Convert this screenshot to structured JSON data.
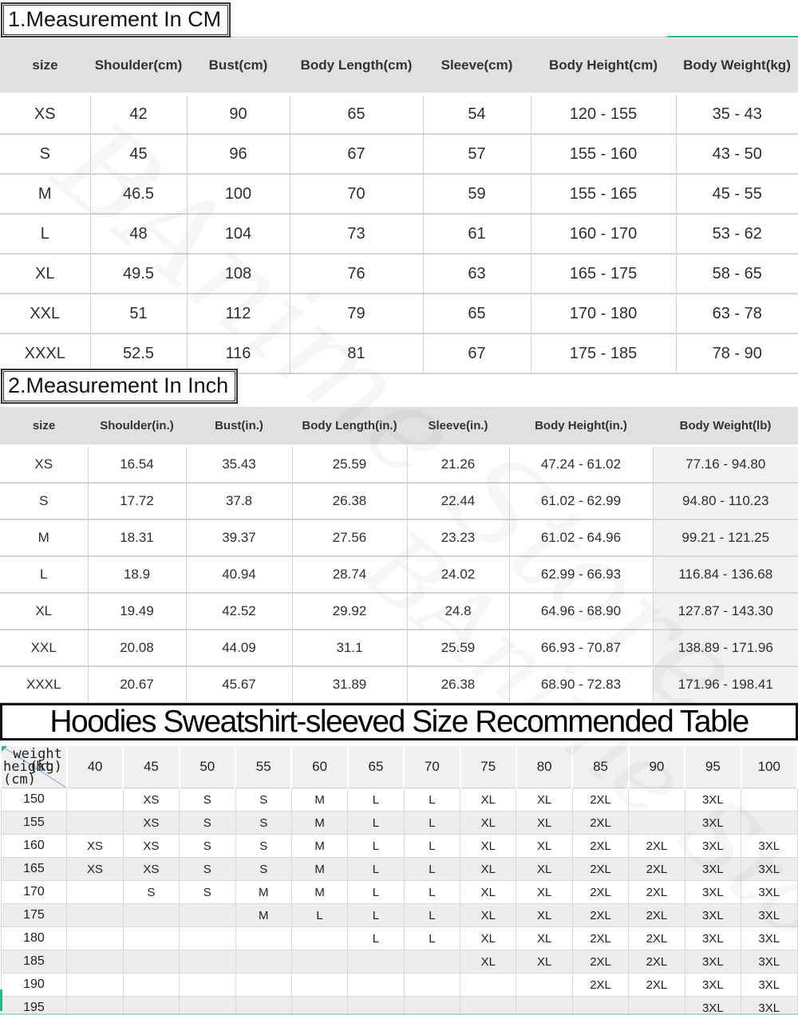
{
  "watermark": "BAnime Store",
  "colors": {
    "teal_accent": "#2bb68b",
    "light_green_accent": "#abdcc9",
    "header_bg": "#e0e0e0",
    "matrix_header_bg": "#f0f0f0",
    "alt_row_bg": "#ececec",
    "grid_border": "#d6d6d6",
    "diagonal_line": "#99badb"
  },
  "chart_data": [
    {
      "type": "table",
      "title": "1.Measurement In CM",
      "columns": [
        "size",
        "Shoulder(cm)",
        "Bust(cm)",
        "Body Length(cm)",
        "Sleeve(cm)",
        "Body Height(cm)",
        "Body Weight(kg)"
      ],
      "rows": [
        [
          "XS",
          "42",
          "90",
          "65",
          "54",
          "120 - 155",
          "35 - 43"
        ],
        [
          "S",
          "45",
          "96",
          "67",
          "57",
          "155 - 160",
          "43 - 50"
        ],
        [
          "M",
          "46.5",
          "100",
          "70",
          "59",
          "155 - 165",
          "45 - 55"
        ],
        [
          "L",
          "48",
          "104",
          "73",
          "61",
          "160 - 170",
          "53 - 62"
        ],
        [
          "XL",
          "49.5",
          "108",
          "76",
          "63",
          "165 - 175",
          "58 - 65"
        ],
        [
          "XXL",
          "51",
          "112",
          "79",
          "65",
          "170 - 180",
          "63 - 78"
        ],
        [
          "XXXL",
          "52.5",
          "116",
          "81",
          "67",
          "175 - 185",
          "78 - 90"
        ]
      ]
    },
    {
      "type": "table",
      "title": "2.Measurement In Inch",
      "columns": [
        "size",
        "Shoulder(in.)",
        "Bust(in.)",
        "Body Length(in.)",
        "Sleeve(in.)",
        "Body Height(in.)",
        "Body Weight(lb)"
      ],
      "rows": [
        [
          "XS",
          "16.54",
          "35.43",
          "25.59",
          "21.26",
          "47.24 - 61.02",
          "77.16 - 94.80"
        ],
        [
          "S",
          "17.72",
          "37.8",
          "26.38",
          "22.44",
          "61.02 - 62.99",
          "94.80 - 110.23"
        ],
        [
          "M",
          "18.31",
          "39.37",
          "27.56",
          "23.23",
          "61.02 - 64.96",
          "99.21 - 121.25"
        ],
        [
          "L",
          "18.9",
          "40.94",
          "28.74",
          "24.02",
          "62.99 - 66.93",
          "116.84 - 136.68"
        ],
        [
          "XL",
          "19.49",
          "42.52",
          "29.92",
          "24.8",
          "64.96 - 68.90",
          "127.87 - 143.30"
        ],
        [
          "XXL",
          "20.08",
          "44.09",
          "31.1",
          "25.59",
          "66.93 - 70.87",
          "138.89 - 171.96"
        ],
        [
          "XXXL",
          "20.67",
          "45.67",
          "31.89",
          "26.38",
          "68.90 - 72.83",
          "171.96 - 198.41"
        ]
      ]
    },
    {
      "type": "table",
      "title": "Hoodies Sweatshirt-sleeved Size Recommended Table",
      "corner": {
        "weight_label": "weight",
        "weight_unit": "(kg)",
        "height_label": "height",
        "height_unit": "(cm)"
      },
      "weight_columns_kg": [
        "40",
        "45",
        "50",
        "55",
        "60",
        "65",
        "70",
        "75",
        "80",
        "85",
        "90",
        "95",
        "100"
      ],
      "rows": [
        {
          "height": "150",
          "sizes": [
            "",
            "XS",
            "S",
            "S",
            "M",
            "L",
            "L",
            "XL",
            "XL",
            "2XL",
            "",
            "3XL",
            ""
          ]
        },
        {
          "height": "155",
          "sizes": [
            "",
            "XS",
            "S",
            "S",
            "M",
            "L",
            "L",
            "XL",
            "XL",
            "2XL",
            "",
            "3XL",
            ""
          ]
        },
        {
          "height": "160",
          "sizes": [
            "XS",
            "XS",
            "S",
            "S",
            "M",
            "L",
            "L",
            "XL",
            "XL",
            "2XL",
            "2XL",
            "3XL",
            "3XL"
          ]
        },
        {
          "height": "165",
          "sizes": [
            "XS",
            "XS",
            "S",
            "S",
            "M",
            "L",
            "L",
            "XL",
            "XL",
            "2XL",
            "2XL",
            "3XL",
            "3XL"
          ]
        },
        {
          "height": "170",
          "sizes": [
            "",
            "S",
            "S",
            "M",
            "M",
            "L",
            "L",
            "XL",
            "XL",
            "2XL",
            "2XL",
            "3XL",
            "3XL"
          ]
        },
        {
          "height": "175",
          "sizes": [
            "",
            "",
            "",
            "M",
            "L",
            "L",
            "L",
            "XL",
            "XL",
            "2XL",
            "2XL",
            "3XL",
            "3XL"
          ]
        },
        {
          "height": "180",
          "sizes": [
            "",
            "",
            "",
            "",
            "",
            "L",
            "L",
            "XL",
            "XL",
            "2XL",
            "2XL",
            "3XL",
            "3XL"
          ]
        },
        {
          "height": "185",
          "sizes": [
            "",
            "",
            "",
            "",
            "",
            "",
            "",
            "XL",
            "XL",
            "2XL",
            "2XL",
            "3XL",
            "3XL"
          ]
        },
        {
          "height": "190",
          "sizes": [
            "",
            "",
            "",
            "",
            "",
            "",
            "",
            "",
            "",
            "2XL",
            "2XL",
            "3XL",
            "3XL"
          ]
        },
        {
          "height": "195",
          "sizes": [
            "",
            "",
            "",
            "",
            "",
            "",
            "",
            "",
            "",
            "",
            "",
            "3XL",
            "3XL"
          ]
        }
      ]
    }
  ]
}
